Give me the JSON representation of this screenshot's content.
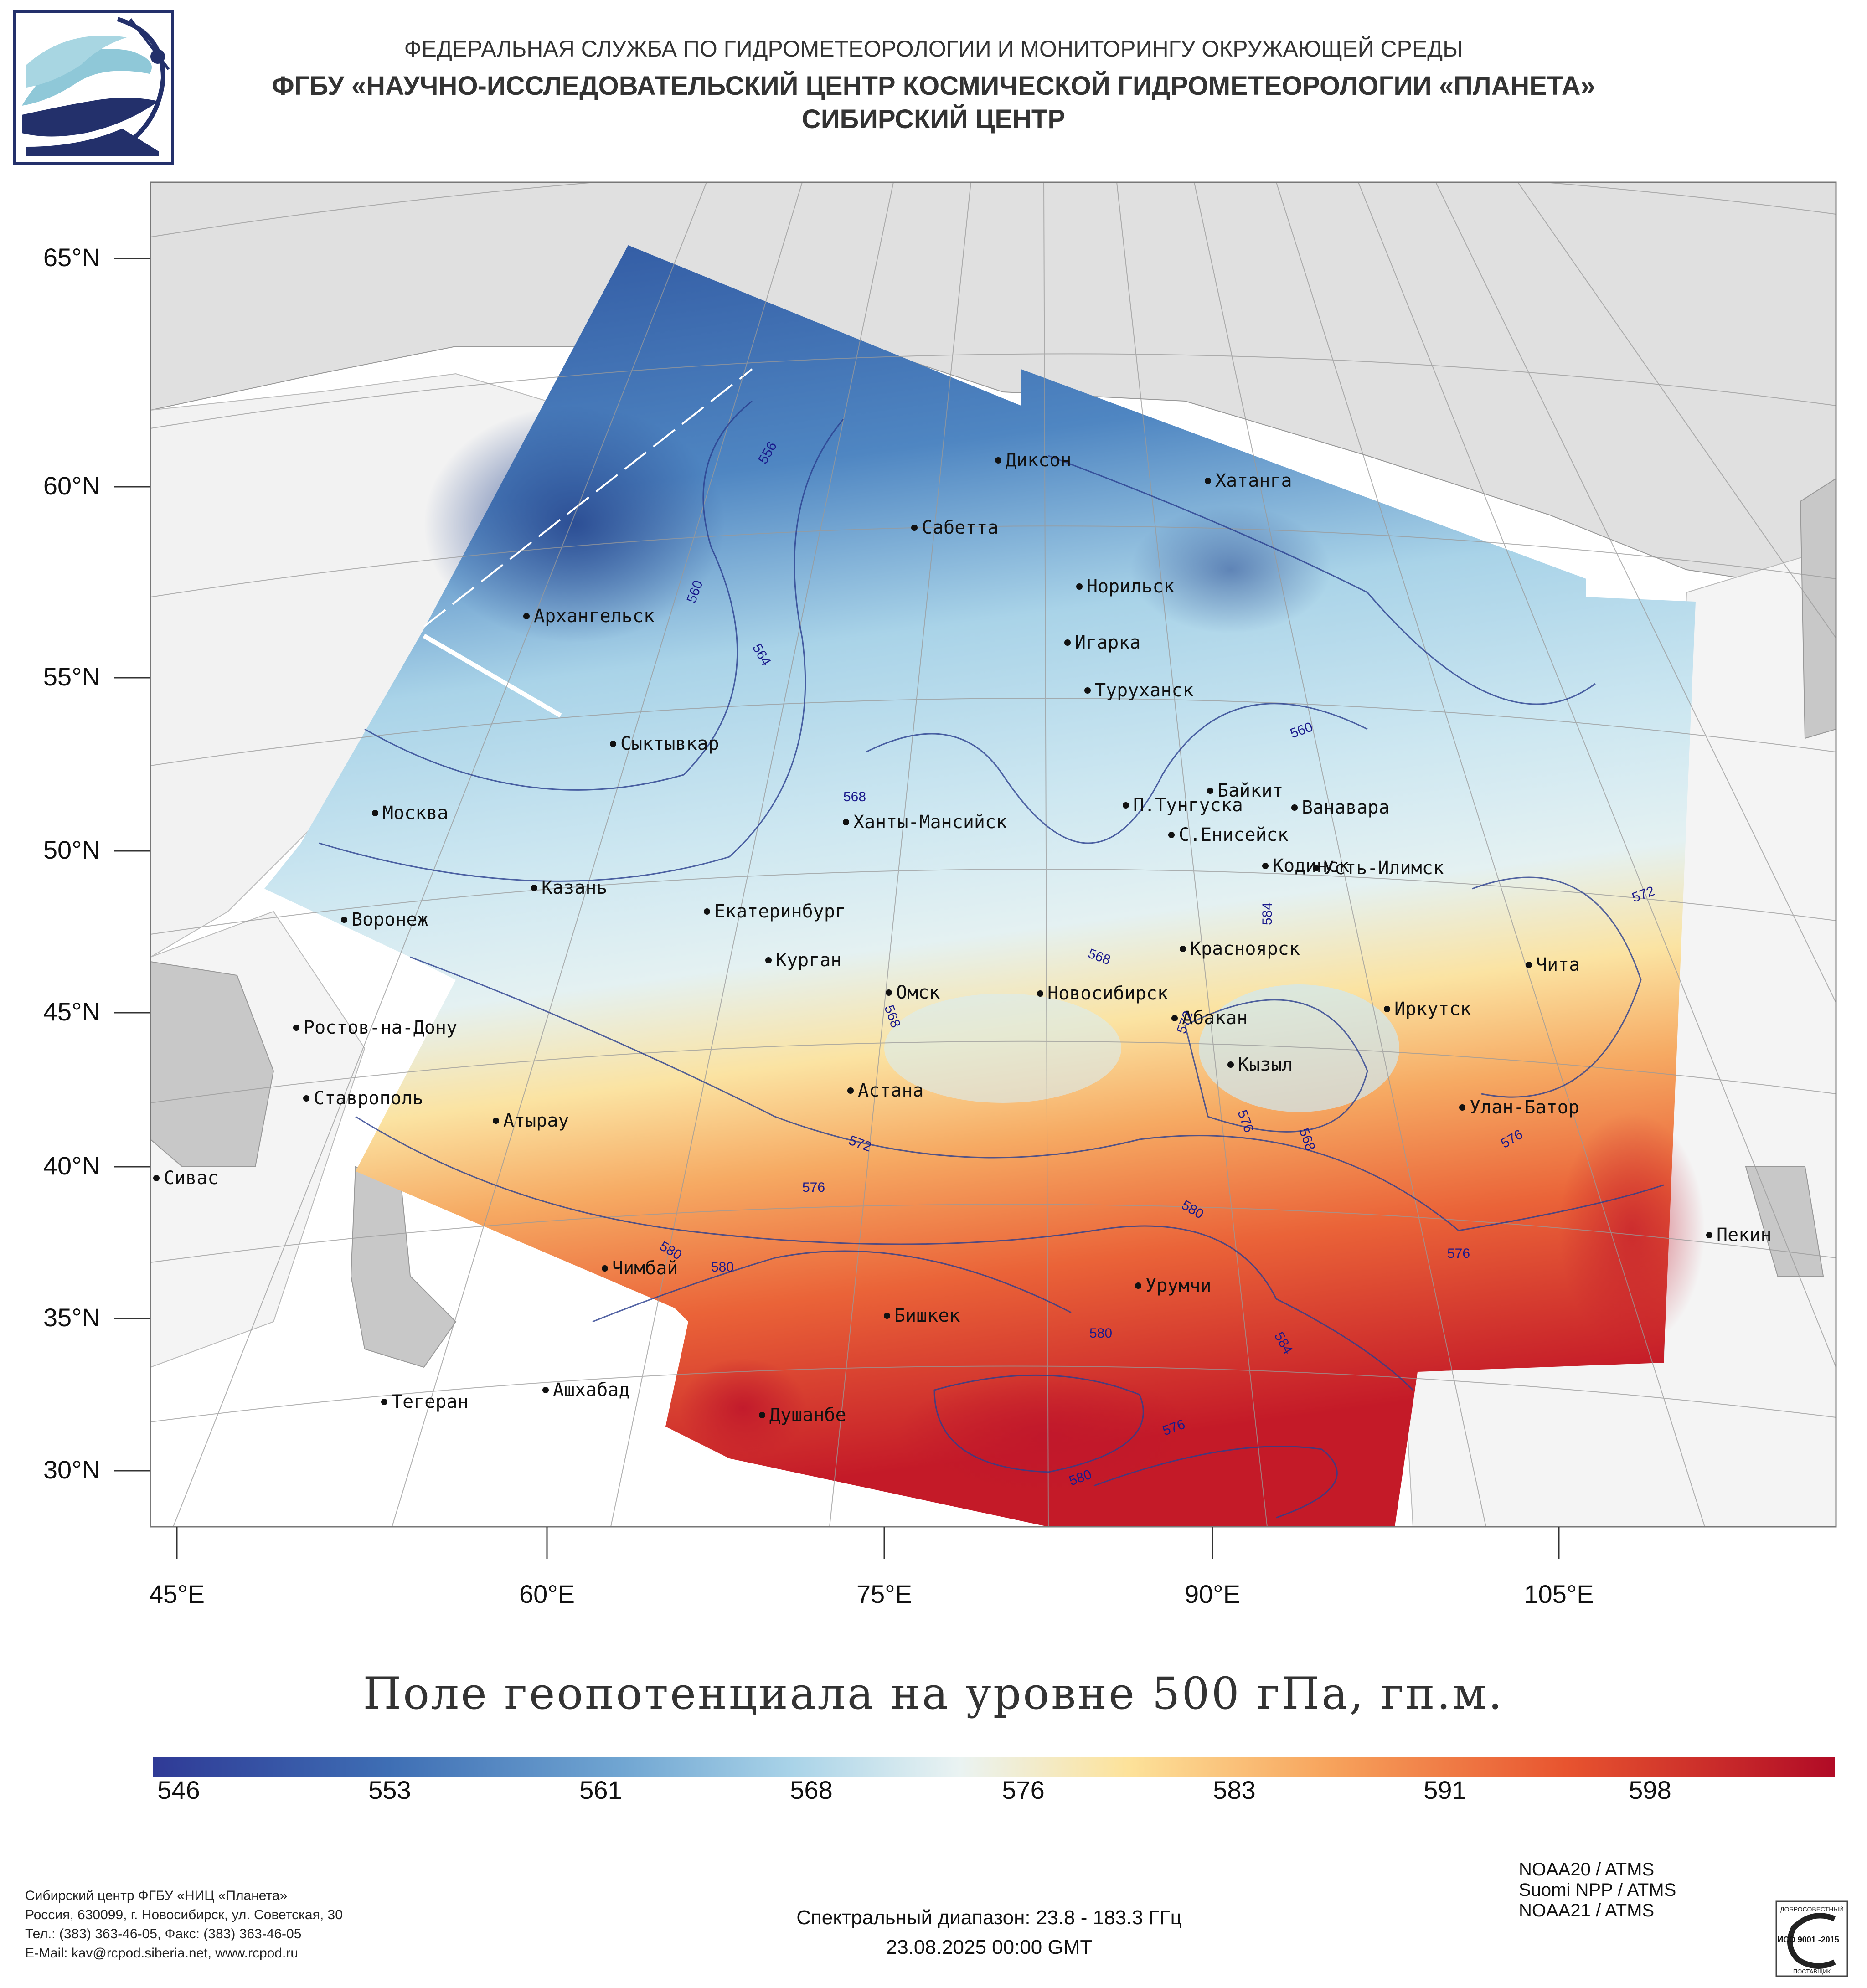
{
  "header": {
    "line1": "ФЕДЕРАЛЬНАЯ СЛУЖБА ПО ГИДРОМЕТЕОРОЛОГИИ И МОНИТОРИНГУ ОКРУЖАЮЩЕЙ СРЕДЫ",
    "line2": "ФГБУ «НАУЧНО-ИССЛЕДОВАТЕЛЬСКИЙ ЦЕНТР КОСМИЧЕСКОЙ ГИДРОМЕТЕОРОЛОГИИ «ПЛАНЕТА»",
    "line3": "СИБИРСКИЙ ЦЕНТР"
  },
  "map": {
    "lat_labels": [
      "65°N",
      "60°N",
      "55°N",
      "50°N",
      "45°N",
      "40°N",
      "35°N",
      "30°N"
    ],
    "lon_labels": [
      "45°E",
      "60°E",
      "75°E",
      "90°E",
      "105°E"
    ],
    "cities": [
      {
        "name": "Диксон"
      },
      {
        "name": "Хатанга"
      },
      {
        "name": "Сабетта"
      },
      {
        "name": "Норильск"
      },
      {
        "name": "Архангельск"
      },
      {
        "name": "Игарка"
      },
      {
        "name": "Туруханск"
      },
      {
        "name": "Сыктывкар"
      },
      {
        "name": "Байкит"
      },
      {
        "name": "П.Тунгуска"
      },
      {
        "name": "Ванавара"
      },
      {
        "name": "Москва"
      },
      {
        "name": "Ханты-Мансийск"
      },
      {
        "name": "С.Енисейск"
      },
      {
        "name": "Кодинск"
      },
      {
        "name": "Усть-Илимск"
      },
      {
        "name": "Казань"
      },
      {
        "name": "Екатеринбург"
      },
      {
        "name": "Воронеж"
      },
      {
        "name": "Красноярск"
      },
      {
        "name": "Курган"
      },
      {
        "name": "Чита"
      },
      {
        "name": "Омск"
      },
      {
        "name": "Новосибирск"
      },
      {
        "name": "Ростов-на-Дону"
      },
      {
        "name": "Абакан"
      },
      {
        "name": "Иркутск"
      },
      {
        "name": "Кызыл"
      },
      {
        "name": "Ставрополь"
      },
      {
        "name": "Астана"
      },
      {
        "name": "Улан-Батор"
      },
      {
        "name": "Атырау"
      },
      {
        "name": "Сивас"
      },
      {
        "name": "Пекин"
      },
      {
        "name": "Чимбай"
      },
      {
        "name": "Урумчи"
      },
      {
        "name": "Бишкек"
      },
      {
        "name": "Ашхабад"
      },
      {
        "name": "Тегеран"
      },
      {
        "name": "Душанбе"
      }
    ],
    "contour_labels": [
      "556",
      "560",
      "564",
      "568",
      "568",
      "572",
      "576",
      "580",
      "580",
      "584",
      "576",
      "568",
      "560",
      "572",
      "576",
      "580",
      "584",
      "580",
      "576",
      "580",
      "568",
      "572",
      "576"
    ]
  },
  "title": "Поле геопотенциала на уровне 500 гПа, гп.м.",
  "colorbar": {
    "labels": [
      "546",
      "553",
      "561",
      "568",
      "576",
      "583",
      "591",
      "598"
    ],
    "colors": [
      "#2f3a96",
      "#3e6eb4",
      "#71a6d2",
      "#b8dcec",
      "#eaf3f2",
      "#fde29a",
      "#f7a35c",
      "#e8542f",
      "#b10b26"
    ]
  },
  "footer": {
    "org": "Сибирский центр ФГБУ «НИЦ «Планета»",
    "addr": "Россия, 630099, г. Новосибирск, ул. Советская, 30",
    "phone": "Тел.: (383) 363-46-05, Факс: (383) 363-46-05",
    "email": "E-Mail: kav@rcpod.siberia.net, www.rcpod.ru",
    "sat1": "NOAA20 / ATMS",
    "sat2": "Suomi NPP / ATMS",
    "sat3": "NOAA21 / ATMS",
    "spectral": "Спектральный диапазон: 23.8 - 183.3 ГГц",
    "datetime": "23.08.2025 00:00 GMT",
    "iso_top": "ДОБРОСОВЕСТНЫЙ",
    "iso_mid": "ИСО 9001 -2015",
    "iso_bottom": "ПОСТАВЩИК"
  }
}
